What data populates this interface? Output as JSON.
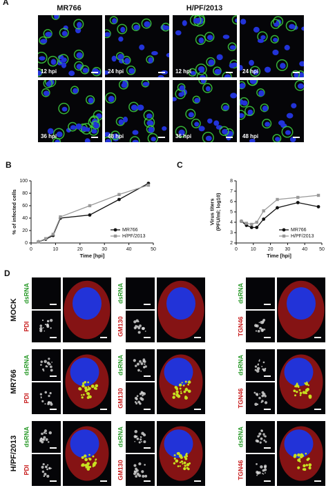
{
  "panel_a": {
    "letter": "A",
    "strains": [
      "MR766",
      "H/PF/2013"
    ],
    "timepoints": [
      "12 hpi",
      "24 hpi",
      "36 hpi",
      "48 hpi"
    ]
  },
  "chart_data": [
    {
      "type": "line",
      "panel": "B",
      "xlabel": "Time [hpi]",
      "ylabel": "% of infected cells",
      "x": [
        3,
        6,
        9,
        12,
        24,
        36,
        48
      ],
      "xlim": [
        0,
        50
      ],
      "xticks": [
        0,
        10,
        20,
        30,
        40,
        50
      ],
      "ylim": [
        0,
        100
      ],
      "yticks": [
        0,
        20,
        40,
        60,
        80,
        100
      ],
      "legend": "lower right",
      "series": [
        {
          "name": "MR766",
          "color": "#111111",
          "marker": "circle",
          "values": [
            2,
            6,
            12,
            40,
            45,
            70,
            96
          ]
        },
        {
          "name": "H/PF/2013",
          "color": "#999999",
          "marker": "square",
          "values": [
            2,
            7,
            14,
            42,
            60,
            78,
            93
          ]
        }
      ]
    },
    {
      "type": "line",
      "panel": "C",
      "xlabel": "Time [hpi]",
      "ylabel": [
        "Virus titers",
        "(PFU/ml; log10)"
      ],
      "x": [
        3,
        6,
        9,
        12,
        16,
        24,
        36,
        48
      ],
      "xlim": [
        0,
        50
      ],
      "xticks": [
        0,
        10,
        20,
        30,
        40,
        50
      ],
      "ylim": [
        2,
        8
      ],
      "yticks": [
        2,
        3,
        4,
        5,
        6,
        7,
        8
      ],
      "legend": "lower right",
      "series": [
        {
          "name": "MR766",
          "color": "#111111",
          "marker": "circle",
          "values": [
            4.1,
            3.7,
            3.5,
            3.5,
            4.3,
            5.4,
            5.9,
            5.5
          ]
        },
        {
          "name": "H/PF/2013",
          "color": "#999999",
          "marker": "square",
          "values": [
            4.1,
            3.9,
            3.8,
            4.0,
            5.1,
            6.2,
            6.4,
            6.6
          ]
        }
      ]
    }
  ],
  "panel_d": {
    "letter": "D",
    "rows": [
      "MOCK",
      "MR766",
      "H/PF/2013"
    ],
    "stain": "dsRNA",
    "markers": [
      "PDI",
      "GM130",
      "TGN46"
    ]
  }
}
